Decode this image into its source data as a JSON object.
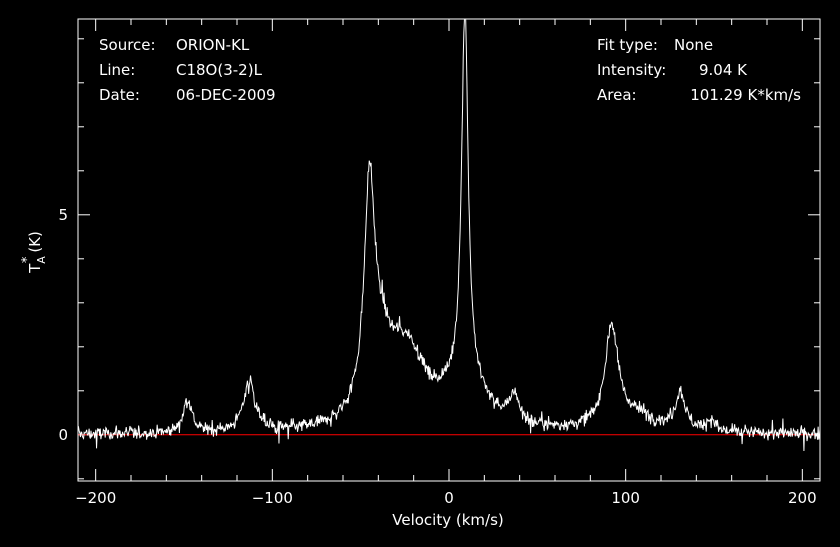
{
  "header": {
    "source_label": "Source:",
    "source_value": "ORION-KL",
    "line_label": "Line:",
    "line_value": "C18O(3-2)L",
    "date_label": "Date:",
    "date_value": "06-DEC-2009",
    "fit_label": "Fit type:",
    "fit_value": "None",
    "intensity_label": "Intensity:",
    "intensity_value": "9.04 K",
    "area_label": "Area:",
    "area_value": "101.29 K*km/s"
  },
  "colors": {
    "background": "#000000",
    "spectrum": "#ffffff",
    "baseline": "#ff0000",
    "frame": "#ffffff"
  },
  "chart_data": {
    "type": "line",
    "title": "",
    "xlabel": "Velocity (km/s)",
    "ylabel_main": "T",
    "ylabel_sup": "*",
    "ylabel_sub": "A",
    "ylabel_unit": "(K)",
    "xlim": [
      -210,
      210
    ],
    "ylim": [
      -1.05,
      9.45
    ],
    "xticks": [
      -200,
      -100,
      0,
      100,
      200
    ],
    "xtick_labels": [
      "−200",
      "−100",
      "0",
      "100",
      "200"
    ],
    "yticks": [
      0,
      5
    ],
    "ytick_labels": [
      "0",
      "5"
    ],
    "baseline_y": 0,
    "grid": false,
    "noise_rms": 0.12,
    "series": [
      {
        "components": [
          {
            "center": -148,
            "amp": 0.75,
            "width": 3
          },
          {
            "center": -113,
            "amp": 1.15,
            "width": 4
          },
          {
            "center": -45,
            "amp": 4.7,
            "width": 3.5
          },
          {
            "center": -39,
            "amp": 1.5,
            "width": 9
          },
          {
            "center": -25,
            "amp": 1.4,
            "width": 11
          },
          {
            "center": -18,
            "amp": 0.3,
            "width": 8
          },
          {
            "center": 9,
            "amp": 8.6,
            "width": 2.2
          },
          {
            "center": 9,
            "amp": 1.0,
            "width": 16
          },
          {
            "center": 37,
            "amp": 0.6,
            "width": 3
          },
          {
            "center": 92,
            "amp": 2.3,
            "width": 4.5
          },
          {
            "center": 106,
            "amp": 0.35,
            "width": 14
          },
          {
            "center": 131,
            "amp": 0.85,
            "width": 3.5
          },
          {
            "center": 148,
            "amp": 0.25,
            "width": 3
          }
        ]
      }
    ]
  }
}
